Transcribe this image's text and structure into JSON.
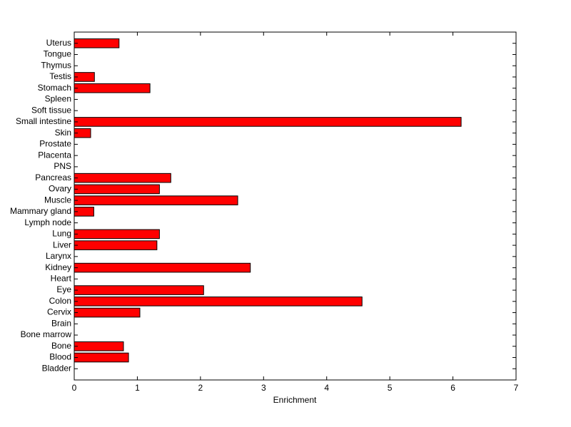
{
  "chart_data": {
    "type": "barh",
    "xlabel": "Enrichment",
    "categories": [
      "Bladder",
      "Blood",
      "Bone",
      "Bone marrow",
      "Brain",
      "Cervix",
      "Colon",
      "Eye",
      "Heart",
      "Kidney",
      "Larynx",
      "Liver",
      "Lung",
      "Lymph node",
      "Mammary gland",
      "Muscle",
      "Ovary",
      "Pancreas",
      "PNS",
      "Placenta",
      "Prostate",
      "Skin",
      "Small intestine",
      "Soft tissue",
      "Spleen",
      "Stomach",
      "Testis",
      "Thymus",
      "Tongue",
      "Uterus"
    ],
    "values": [
      0,
      0.86,
      0.78,
      0,
      0,
      1.04,
      4.56,
      2.05,
      0,
      2.79,
      0,
      1.31,
      1.35,
      0,
      0.31,
      2.59,
      1.35,
      1.53,
      0,
      0,
      0,
      0.26,
      6.13,
      0,
      0,
      1.2,
      0.32,
      0,
      0,
      0.71
    ],
    "color": "#ff0000",
    "xlim": [
      0,
      7
    ],
    "xticks": [
      0,
      1,
      2,
      3,
      4,
      5,
      6,
      7
    ],
    "grid": false
  }
}
